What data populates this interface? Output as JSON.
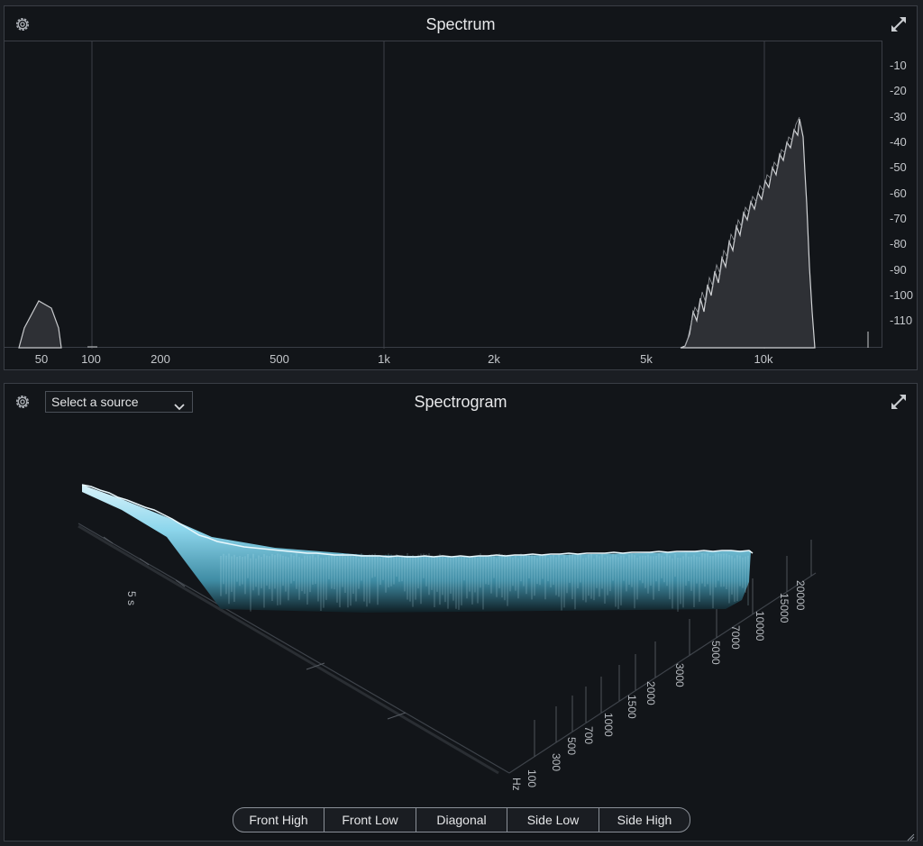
{
  "spectrum": {
    "title": "Spectrum",
    "db_labels": [
      "-10",
      "-20",
      "-30",
      "-40",
      "-50",
      "-60",
      "-70",
      "-80",
      "-90",
      "-100",
      "-110"
    ],
    "hz_labels": [
      "50",
      "100",
      "200",
      "500",
      "1k",
      "2k",
      "5k",
      "10k"
    ]
  },
  "spectrogram": {
    "title": "Spectrogram",
    "source_select": "Select a source",
    "time_label": "5 s",
    "freq_labels": [
      "100",
      "300",
      "500",
      "700",
      "1000",
      "1500",
      "2000",
      "3000",
      "5000",
      "7000",
      "10000",
      "15000",
      "20000"
    ],
    "unit": "Hz"
  },
  "view_buttons": [
    "Front High",
    "Front Low",
    "Diagonal",
    "Side Low",
    "Side High"
  ],
  "icons": {
    "settings": "gear-icon",
    "expand": "expand-icon",
    "dropdown": "chevron-down-icon",
    "resize": "resize-grip-icon"
  },
  "colors": {
    "background": "#121519",
    "spectrum_fill": "#2e3035",
    "spectrum_line": "#c8cacd",
    "waterfall": "#7fd3ea"
  }
}
